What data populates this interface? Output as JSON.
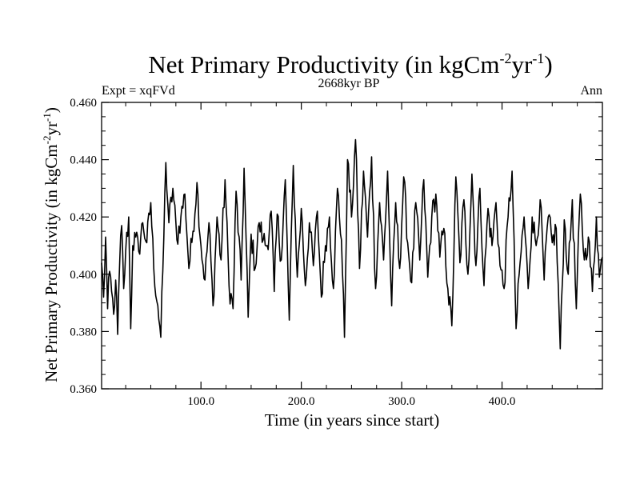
{
  "chart_data": {
    "type": "line",
    "title": "Net Primary Productivity (in kgCm",
    "title_exp1": "-2",
    "title_mid": "yr",
    "title_exp2": "-1",
    "title_end": ")",
    "subtitle_left": "Expt = xqFVd",
    "subtitle_center": "2668kyr BP",
    "subtitle_right": "Ann",
    "xlabel": "Time (in years since start)",
    "ylabel": "Net Primary Productivity (in kgCm",
    "ylabel_exp1": "-2",
    "ylabel_mid": "yr",
    "ylabel_exp2": "-1",
    "ylabel_end": ")",
    "xlim": [
      1,
      500
    ],
    "ylim": [
      0.36,
      0.46
    ],
    "x_ticks": [
      {
        "value": 100,
        "label": "100.0"
      },
      {
        "value": 200,
        "label": "200.0"
      },
      {
        "value": 300,
        "label": "300.0"
      },
      {
        "value": 400,
        "label": "400.0"
      }
    ],
    "y_ticks": [
      {
        "value": 0.36,
        "label": "0.360"
      },
      {
        "value": 0.38,
        "label": "0.380"
      },
      {
        "value": 0.4,
        "label": "0.400"
      },
      {
        "value": 0.42,
        "label": "0.420"
      },
      {
        "value": 0.44,
        "label": "0.440"
      },
      {
        "value": 0.46,
        "label": "0.460"
      }
    ],
    "series": [
      {
        "name": "Net Primary Productivity",
        "color": "#000000",
        "x_start": 1,
        "x_step": 1,
        "anchors": [
          [
            1,
            0.404
          ],
          [
            3,
            0.392
          ],
          [
            5,
            0.413
          ],
          [
            7,
            0.388
          ],
          [
            9,
            0.401
          ],
          [
            11,
            0.394
          ],
          [
            13,
            0.386
          ],
          [
            15,
            0.398
          ],
          [
            17,
            0.379
          ],
          [
            19,
            0.404
          ],
          [
            21,
            0.417
          ],
          [
            23,
            0.395
          ],
          [
            25,
            0.408
          ],
          [
            28,
            0.42
          ],
          [
            30,
            0.381
          ],
          [
            32,
            0.41
          ],
          [
            35,
            0.413
          ],
          [
            38,
            0.408
          ],
          [
            42,
            0.418
          ],
          [
            46,
            0.411
          ],
          [
            50,
            0.425
          ],
          [
            53,
            0.402
          ],
          [
            57,
            0.389
          ],
          [
            60,
            0.378
          ],
          [
            63,
            0.413
          ],
          [
            65,
            0.439
          ],
          [
            68,
            0.418
          ],
          [
            72,
            0.43
          ],
          [
            76,
            0.412
          ],
          [
            80,
            0.42
          ],
          [
            84,
            0.428
          ],
          [
            88,
            0.402
          ],
          [
            92,
            0.415
          ],
          [
            96,
            0.432
          ],
          [
            100,
            0.41
          ],
          [
            104,
            0.398
          ],
          [
            108,
            0.418
          ],
          [
            112,
            0.389
          ],
          [
            116,
            0.42
          ],
          [
            120,
            0.405
          ],
          [
            124,
            0.433
          ],
          [
            128,
            0.396
          ],
          [
            132,
            0.388
          ],
          [
            135,
            0.429
          ],
          [
            140,
            0.398
          ],
          [
            143,
            0.437
          ],
          [
            147,
            0.385
          ],
          [
            150,
            0.414
          ],
          [
            154,
            0.402
          ],
          [
            158,
            0.418
          ],
          [
            162,
            0.412
          ],
          [
            166,
            0.41
          ],
          [
            170,
            0.422
          ],
          [
            173,
            0.394
          ],
          [
            176,
            0.421
          ],
          [
            180,
            0.405
          ],
          [
            184,
            0.433
          ],
          [
            188,
            0.384
          ],
          [
            192,
            0.438
          ],
          [
            196,
            0.399
          ],
          [
            200,
            0.423
          ],
          [
            204,
            0.396
          ],
          [
            208,
            0.418
          ],
          [
            212,
            0.403
          ],
          [
            216,
            0.422
          ],
          [
            220,
            0.392
          ],
          [
            224,
            0.41
          ],
          [
            228,
            0.42
          ],
          [
            232,
            0.395
          ],
          [
            236,
            0.43
          ],
          [
            240,
            0.412
          ],
          [
            243,
            0.378
          ],
          [
            246,
            0.44
          ],
          [
            250,
            0.42
          ],
          [
            254,
            0.447
          ],
          [
            258,
            0.402
          ],
          [
            262,
            0.436
          ],
          [
            266,
            0.413
          ],
          [
            270,
            0.441
          ],
          [
            274,
            0.395
          ],
          [
            278,
            0.425
          ],
          [
            282,
            0.405
          ],
          [
            286,
            0.436
          ],
          [
            290,
            0.389
          ],
          [
            294,
            0.425
          ],
          [
            298,
            0.402
          ],
          [
            302,
            0.434
          ],
          [
            306,
            0.411
          ],
          [
            310,
            0.397
          ],
          [
            314,
            0.425
          ],
          [
            318,
            0.405
          ],
          [
            322,
            0.433
          ],
          [
            326,
            0.399
          ],
          [
            330,
            0.42
          ],
          [
            334,
            0.428
          ],
          [
            338,
            0.406
          ],
          [
            342,
            0.416
          ],
          [
            346,
            0.395
          ],
          [
            350,
            0.382
          ],
          [
            354,
            0.434
          ],
          [
            358,
            0.404
          ],
          [
            362,
            0.426
          ],
          [
            366,
            0.4
          ],
          [
            370,
            0.435
          ],
          [
            374,
            0.403
          ],
          [
            378,
            0.43
          ],
          [
            382,
            0.396
          ],
          [
            386,
            0.423
          ],
          [
            390,
            0.41
          ],
          [
            394,
            0.425
          ],
          [
            398,
            0.403
          ],
          [
            402,
            0.395
          ],
          [
            406,
            0.42
          ],
          [
            410,
            0.436
          ],
          [
            414,
            0.381
          ],
          [
            418,
            0.404
          ],
          [
            422,
            0.42
          ],
          [
            426,
            0.395
          ],
          [
            430,
            0.42
          ],
          [
            434,
            0.41
          ],
          [
            438,
            0.426
          ],
          [
            442,
            0.398
          ],
          [
            446,
            0.42
          ],
          [
            450,
            0.411
          ],
          [
            454,
            0.416
          ],
          [
            458,
            0.374
          ],
          [
            462,
            0.419
          ],
          [
            466,
            0.4
          ],
          [
            470,
            0.426
          ],
          [
            474,
            0.388
          ],
          [
            478,
            0.428
          ],
          [
            482,
            0.405
          ],
          [
            486,
            0.413
          ],
          [
            490,
            0.394
          ],
          [
            494,
            0.42
          ],
          [
            497,
            0.399
          ],
          [
            500,
            0.406
          ]
        ]
      }
    ]
  }
}
